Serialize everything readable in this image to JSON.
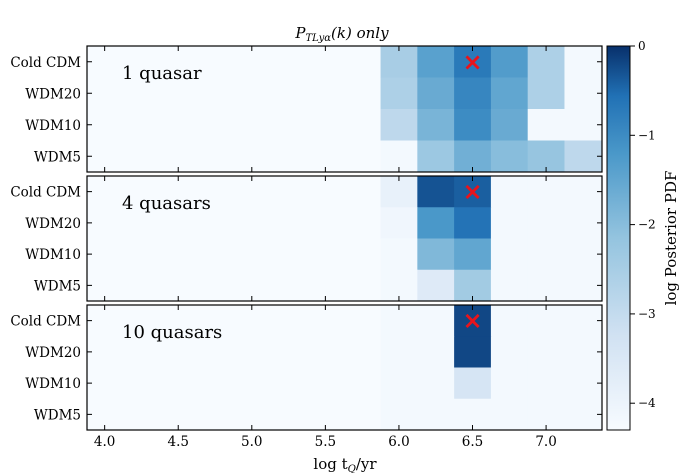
{
  "chart_data": {
    "type": "heatmap",
    "title_main": "P",
    "title_sub": "TLyα",
    "title_rest": "(k) only",
    "xlabel_main": "log t",
    "xlabel_sub": "Q",
    "xlabel_rest": "/yr",
    "colorbar_label": "log Posterior PDF",
    "x_ticks": [
      4.0,
      4.5,
      5.0,
      5.5,
      6.0,
      6.5,
      7.0
    ],
    "x_tick_labels": [
      "4.0",
      "4.5",
      "5.0",
      "5.5",
      "6.0",
      "6.5",
      "7.0"
    ],
    "xlim": [
      3.88,
      7.38
    ],
    "x_bin_edges": [
      5.875,
      6.125,
      6.375,
      6.625,
      6.875,
      7.125,
      7.375
    ],
    "rows": [
      "Cold CDM",
      "WDM20",
      "WDM10",
      "WDM5"
    ],
    "colorbar_range": [
      -4.3,
      0
    ],
    "colorbar_ticks": [
      0,
      -1,
      -2,
      -3,
      -4
    ],
    "colorbar_tick_labels": [
      "0",
      "−1",
      "−2",
      "−3",
      "−4"
    ],
    "marker": {
      "x": 6.5,
      "row": "Cold CDM",
      "symbol": "×",
      "color": "#e8141c"
    },
    "panels": [
      {
        "label": "1 quasar",
        "values": [
          [
            -2.5,
            -1.4,
            -0.7,
            -1.3,
            -2.6,
            -4.2
          ],
          [
            -2.6,
            -1.6,
            -0.9,
            -1.5,
            -2.6,
            -4.2
          ],
          [
            -2.9,
            -1.8,
            -1.0,
            -1.6,
            -4.2,
            -4.2
          ],
          [
            -4.2,
            -2.3,
            -1.7,
            -2.0,
            -2.2,
            -2.9
          ]
        ]
      },
      {
        "label": "4 quasars",
        "values": [
          [
            -3.9,
            -0.3,
            -0.4,
            -4.2,
            -4.2,
            -4.2
          ],
          [
            -4.1,
            -1.2,
            -0.6,
            -4.2,
            -4.2,
            -4.2
          ],
          [
            -4.2,
            -1.9,
            -1.5,
            -4.2,
            -4.2,
            -4.2
          ],
          [
            -4.2,
            -3.6,
            -2.4,
            -4.2,
            -4.2,
            -4.2
          ]
        ]
      },
      {
        "label": "10 quasars",
        "values": [
          [
            -4.2,
            -4.2,
            -0.2,
            -4.2,
            -4.2,
            -4.2
          ],
          [
            -4.2,
            -4.2,
            -0.2,
            -4.2,
            -4.2,
            -4.2
          ],
          [
            -4.2,
            -4.2,
            -3.4,
            -4.2,
            -4.2,
            -4.2
          ],
          [
            -4.2,
            -4.2,
            -4.2,
            -4.2,
            -4.2,
            -4.2
          ]
        ]
      }
    ]
  }
}
